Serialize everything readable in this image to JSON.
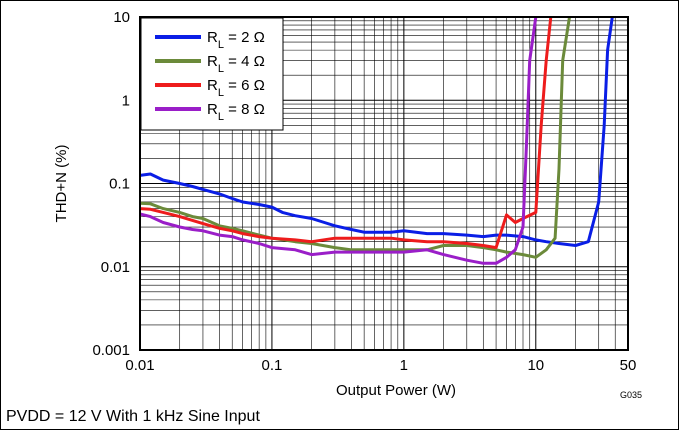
{
  "caption": "PVDD = 12 V With 1 kHz Sine Input",
  "graph_id": "G035",
  "chart_data": {
    "type": "line",
    "xlabel": "Output Power (W)",
    "ylabel": "THD+N (%)",
    "x_scale": "log",
    "y_scale": "log",
    "xlim": [
      0.01,
      50
    ],
    "ylim": [
      0.001,
      10
    ],
    "x_ticks": [
      {
        "value": 0.01,
        "label": "0.01"
      },
      {
        "value": 0.1,
        "label": "0.1"
      },
      {
        "value": 1,
        "label": "1"
      },
      {
        "value": 10,
        "label": "10"
      },
      {
        "value": 50,
        "label": "50"
      }
    ],
    "y_ticks": [
      {
        "value": 0.001,
        "label": "0.001"
      },
      {
        "value": 0.01,
        "label": "0.01"
      },
      {
        "value": 0.1,
        "label": "0.1"
      },
      {
        "value": 1,
        "label": "1"
      },
      {
        "value": 10,
        "label": "10"
      }
    ],
    "grid": true,
    "legend_position": "top-left",
    "series": [
      {
        "name": "RL = 2 Ω",
        "legend": {
          "base": "R",
          "sub": "L",
          "rest": " = 2 Ω"
        },
        "color": "#0a1ee6",
        "points": [
          [
            0.01,
            0.125
          ],
          [
            0.012,
            0.13
          ],
          [
            0.015,
            0.11
          ],
          [
            0.02,
            0.1
          ],
          [
            0.025,
            0.092
          ],
          [
            0.03,
            0.085
          ],
          [
            0.04,
            0.075
          ],
          [
            0.05,
            0.066
          ],
          [
            0.06,
            0.06
          ],
          [
            0.08,
            0.056
          ],
          [
            0.1,
            0.052
          ],
          [
            0.12,
            0.045
          ],
          [
            0.15,
            0.041
          ],
          [
            0.2,
            0.038
          ],
          [
            0.25,
            0.034
          ],
          [
            0.3,
            0.031
          ],
          [
            0.4,
            0.028
          ],
          [
            0.5,
            0.026
          ],
          [
            0.6,
            0.026
          ],
          [
            0.8,
            0.026
          ],
          [
            1,
            0.027
          ],
          [
            1.5,
            0.025
          ],
          [
            2,
            0.025
          ],
          [
            3,
            0.024
          ],
          [
            4,
            0.023
          ],
          [
            5,
            0.024
          ],
          [
            6,
            0.024
          ],
          [
            8,
            0.023
          ],
          [
            10,
            0.021
          ],
          [
            12,
            0.02
          ],
          [
            15,
            0.019
          ],
          [
            20,
            0.018
          ],
          [
            25,
            0.02
          ],
          [
            30,
            0.06
          ],
          [
            33,
            0.5
          ],
          [
            35,
            4
          ],
          [
            38,
            10
          ]
        ]
      },
      {
        "name": "RL = 4 Ω",
        "legend": {
          "base": "R",
          "sub": "L",
          "rest": " = 4 Ω"
        },
        "color": "#6b8a3a",
        "points": [
          [
            0.01,
            0.058
          ],
          [
            0.012,
            0.057
          ],
          [
            0.015,
            0.05
          ],
          [
            0.02,
            0.045
          ],
          [
            0.025,
            0.04
          ],
          [
            0.03,
            0.038
          ],
          [
            0.04,
            0.031
          ],
          [
            0.05,
            0.029
          ],
          [
            0.06,
            0.027
          ],
          [
            0.08,
            0.024
          ],
          [
            0.1,
            0.022
          ],
          [
            0.15,
            0.02
          ],
          [
            0.2,
            0.019
          ],
          [
            0.3,
            0.017
          ],
          [
            0.4,
            0.016
          ],
          [
            0.5,
            0.016
          ],
          [
            0.6,
            0.016
          ],
          [
            0.8,
            0.016
          ],
          [
            1,
            0.016
          ],
          [
            1.5,
            0.016
          ],
          [
            2,
            0.018
          ],
          [
            3,
            0.018
          ],
          [
            4,
            0.017
          ],
          [
            5,
            0.016
          ],
          [
            6,
            0.015
          ],
          [
            8,
            0.014
          ],
          [
            10,
            0.013
          ],
          [
            12,
            0.016
          ],
          [
            14,
            0.022
          ],
          [
            15,
            0.15
          ],
          [
            16,
            3
          ],
          [
            18,
            10
          ]
        ]
      },
      {
        "name": "RL = 6 Ω",
        "legend": {
          "base": "R",
          "sub": "L",
          "rest": " = 6 Ω"
        },
        "color": "#ee1c1c",
        "points": [
          [
            0.01,
            0.05
          ],
          [
            0.012,
            0.049
          ],
          [
            0.015,
            0.045
          ],
          [
            0.02,
            0.04
          ],
          [
            0.025,
            0.036
          ],
          [
            0.03,
            0.033
          ],
          [
            0.04,
            0.029
          ],
          [
            0.05,
            0.027
          ],
          [
            0.06,
            0.025
          ],
          [
            0.08,
            0.023
          ],
          [
            0.1,
            0.022
          ],
          [
            0.15,
            0.021
          ],
          [
            0.2,
            0.02
          ],
          [
            0.3,
            0.022
          ],
          [
            0.4,
            0.022
          ],
          [
            0.5,
            0.022
          ],
          [
            0.6,
            0.022
          ],
          [
            0.8,
            0.022
          ],
          [
            1,
            0.021
          ],
          [
            1.5,
            0.02
          ],
          [
            2,
            0.02
          ],
          [
            3,
            0.019
          ],
          [
            4,
            0.018
          ],
          [
            5,
            0.017
          ],
          [
            6,
            0.042
          ],
          [
            7,
            0.034
          ],
          [
            8,
            0.038
          ],
          [
            10,
            0.045
          ],
          [
            11,
            0.5
          ],
          [
            12,
            3
          ],
          [
            13,
            10
          ]
        ]
      },
      {
        "name": "RL = 8 Ω",
        "legend": {
          "base": "R",
          "sub": "L",
          "rest": " = 8 Ω"
        },
        "color": "#9a1ec8",
        "points": [
          [
            0.01,
            0.043
          ],
          [
            0.012,
            0.04
          ],
          [
            0.015,
            0.034
          ],
          [
            0.02,
            0.03
          ],
          [
            0.025,
            0.028
          ],
          [
            0.03,
            0.027
          ],
          [
            0.04,
            0.024
          ],
          [
            0.05,
            0.023
          ],
          [
            0.06,
            0.021
          ],
          [
            0.08,
            0.019
          ],
          [
            0.1,
            0.017
          ],
          [
            0.15,
            0.016
          ],
          [
            0.2,
            0.014
          ],
          [
            0.3,
            0.015
          ],
          [
            0.4,
            0.015
          ],
          [
            0.5,
            0.015
          ],
          [
            0.6,
            0.015
          ],
          [
            0.8,
            0.015
          ],
          [
            1,
            0.015
          ],
          [
            1.5,
            0.016
          ],
          [
            2,
            0.014
          ],
          [
            3,
            0.012
          ],
          [
            4,
            0.011
          ],
          [
            5,
            0.011
          ],
          [
            6,
            0.013
          ],
          [
            7,
            0.016
          ],
          [
            8,
            0.03
          ],
          [
            8.5,
            0.3
          ],
          [
            9,
            3
          ],
          [
            10,
            10
          ]
        ]
      }
    ]
  }
}
